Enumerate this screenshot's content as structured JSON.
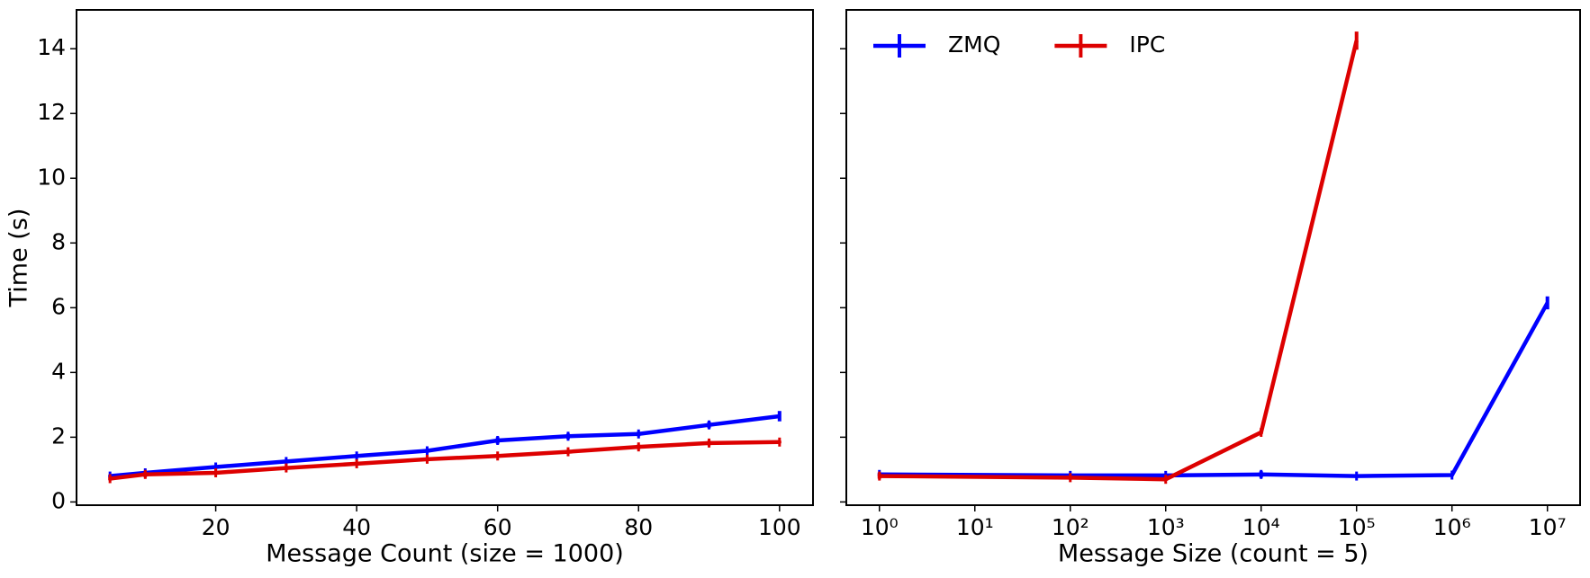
{
  "chart_data": [
    {
      "type": "line",
      "xlabel": "Message Count (size = 1000)",
      "ylabel": "Time (s)",
      "xlim": [
        0.25,
        104.75
      ],
      "xticks": [
        20,
        40,
        60,
        80,
        100
      ],
      "ylim": [
        -0.1,
        15.2
      ],
      "yticks": [
        0,
        2,
        4,
        6,
        8,
        10,
        12,
        14
      ],
      "series": [
        {
          "name": "ZMQ",
          "color": "#0000ff",
          "x": [
            5,
            10,
            20,
            30,
            40,
            50,
            60,
            70,
            80,
            90,
            100
          ],
          "values": [
            0.8,
            0.9,
            1.08,
            1.25,
            1.42,
            1.58,
            1.9,
            2.03,
            2.1,
            2.38,
            2.65
          ],
          "errors": [
            0.04,
            0.05,
            0.03,
            0.04,
            0.03,
            0.06,
            0.1,
            0.08,
            0.07,
            0.1,
            0.16
          ]
        },
        {
          "name": "IPC",
          "color": "#dd0000",
          "x": [
            5,
            10,
            20,
            30,
            40,
            50,
            60,
            70,
            80,
            90,
            100
          ],
          "values": [
            0.72,
            0.85,
            0.9,
            1.05,
            1.18,
            1.32,
            1.42,
            1.55,
            1.7,
            1.82,
            1.85
          ],
          "errors": [
            0.05,
            0.08,
            0.04,
            0.06,
            0.05,
            0.06,
            0.06,
            0.05,
            0.07,
            0.07,
            0.04
          ]
        }
      ]
    },
    {
      "type": "line",
      "xlabel": "Message Size (count = 5)",
      "xscale": "log",
      "sharey": true,
      "legend": "upper left",
      "xlim": [
        0.45,
        22000000
      ],
      "xticks": [
        {
          "value": 1,
          "label": "10⁰"
        },
        {
          "value": 10,
          "label": "10¹"
        },
        {
          "value": 100,
          "label": "10²"
        },
        {
          "value": 1000,
          "label": "10³"
        },
        {
          "value": 10000,
          "label": "10⁴"
        },
        {
          "value": 100000,
          "label": "10⁵"
        },
        {
          "value": 1000000,
          "label": "10⁶"
        },
        {
          "value": 10000000,
          "label": "10⁷"
        }
      ],
      "ylim": [
        -0.1,
        15.2
      ],
      "series": [
        {
          "name": "ZMQ",
          "color": "#0000ff",
          "x": [
            1,
            100,
            1000,
            10000,
            100000,
            1000000,
            10000000
          ],
          "values": [
            0.85,
            0.82,
            0.82,
            0.85,
            0.8,
            0.83,
            6.15
          ],
          "errors": [
            0.06,
            0.04,
            0.03,
            0.1,
            0.03,
            0.03,
            0.2
          ]
        },
        {
          "name": "IPC",
          "color": "#dd0000",
          "x": [
            1,
            100,
            1000,
            10000,
            100000
          ],
          "values": [
            0.8,
            0.75,
            0.7,
            2.15,
            14.25
          ],
          "errors": [
            0.08,
            0.06,
            0.05,
            0.06,
            0.28
          ]
        }
      ]
    }
  ]
}
